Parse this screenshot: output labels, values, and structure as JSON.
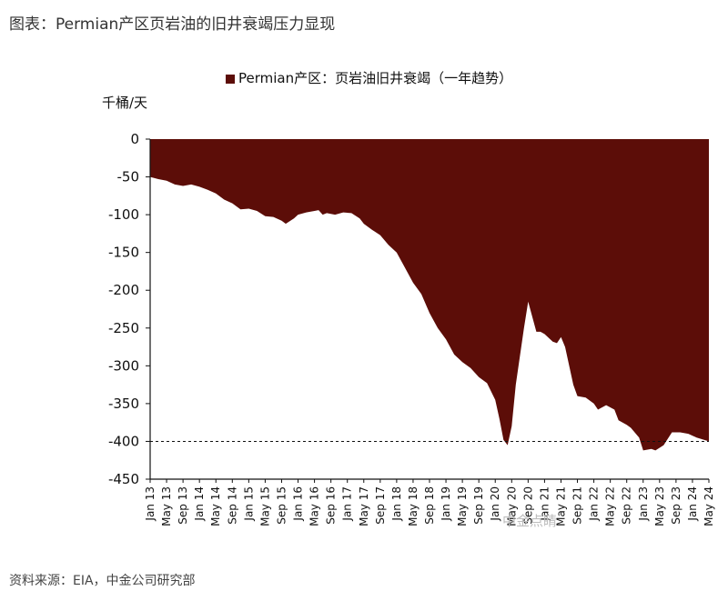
{
  "figure": {
    "title": "图表：Permian产区页岩油的旧井衰竭压力显现",
    "source": "资料来源：EIA，中金公司研究部",
    "watermark": "中金点睛"
  },
  "colors": {
    "area": "#5c0d08",
    "axis": "#111111",
    "reference_line": "#111111"
  },
  "chart_data": {
    "type": "area",
    "title": "",
    "xlabel": "",
    "ylabel": "千桶/天",
    "legend": {
      "position": "top",
      "entries": [
        "Permian产区：页岩油旧井衰竭（一年趋势）"
      ]
    },
    "ylim": [
      -450,
      0
    ],
    "yticks": [
      0,
      -50,
      -100,
      -150,
      -200,
      -250,
      -300,
      -350,
      -400,
      -450
    ],
    "xlim": [
      "2013-01",
      "2024-05"
    ],
    "xtick_labels": [
      "Jan 13",
      "May 13",
      "Sep 13",
      "Jan 14",
      "May 14",
      "Sep 14",
      "Jan 15",
      "May 15",
      "Sep 15",
      "Jan 16",
      "May 16",
      "Sep 16",
      "Jan 17",
      "May 17",
      "Sep 17",
      "Jan 18",
      "May 18",
      "Sep 18",
      "Jan 19",
      "May 19",
      "Sep 19",
      "Jan 20",
      "May 20",
      "Sep 20",
      "Jan 21",
      "May 21",
      "Sep 21",
      "Jan 22",
      "May 22",
      "Sep 22",
      "Jan 23",
      "May 23",
      "Sep 23",
      "Jan 24",
      "May 24"
    ],
    "grid": false,
    "reference_line": {
      "y": -400,
      "style": "dashed"
    },
    "series": [
      {
        "name": "Permian产区：页岩油旧井衰竭（一年趋势）",
        "points": [
          [
            "2013-01",
            -50
          ],
          [
            "2013-03",
            -53
          ],
          [
            "2013-05",
            -55
          ],
          [
            "2013-07",
            -60
          ],
          [
            "2013-09",
            -62
          ],
          [
            "2013-11",
            -60
          ],
          [
            "2014-01",
            -63
          ],
          [
            "2014-03",
            -67
          ],
          [
            "2014-05",
            -72
          ],
          [
            "2014-07",
            -80
          ],
          [
            "2014-09",
            -85
          ],
          [
            "2014-11",
            -93
          ],
          [
            "2015-01",
            -92
          ],
          [
            "2015-03",
            -95
          ],
          [
            "2015-05",
            -102
          ],
          [
            "2015-07",
            -103
          ],
          [
            "2015-09",
            -108
          ],
          [
            "2015-10",
            -112
          ],
          [
            "2015-12",
            -105
          ],
          [
            "2016-01",
            -100
          ],
          [
            "2016-03",
            -97
          ],
          [
            "2016-05",
            -95
          ],
          [
            "2016-06",
            -94
          ],
          [
            "2016-07",
            -100
          ],
          [
            "2016-08",
            -98
          ],
          [
            "2016-10",
            -100
          ],
          [
            "2016-12",
            -97
          ],
          [
            "2017-02",
            -98
          ],
          [
            "2017-04",
            -105
          ],
          [
            "2017-05",
            -112
          ],
          [
            "2017-07",
            -120
          ],
          [
            "2017-09",
            -127
          ],
          [
            "2017-11",
            -140
          ],
          [
            "2018-01",
            -150
          ],
          [
            "2018-03",
            -170
          ],
          [
            "2018-05",
            -190
          ],
          [
            "2018-07",
            -205
          ],
          [
            "2018-09",
            -230
          ],
          [
            "2018-11",
            -250
          ],
          [
            "2019-01",
            -265
          ],
          [
            "2019-03",
            -285
          ],
          [
            "2019-05",
            -295
          ],
          [
            "2019-07",
            -303
          ],
          [
            "2019-09",
            -315
          ],
          [
            "2019-11",
            -323
          ],
          [
            "2020-01",
            -345
          ],
          [
            "2020-02",
            -370
          ],
          [
            "2020-03",
            -398
          ],
          [
            "2020-04",
            -405
          ],
          [
            "2020-05",
            -380
          ],
          [
            "2020-06",
            -325
          ],
          [
            "2020-08",
            -250
          ],
          [
            "2020-09",
            -215
          ],
          [
            "2020-11",
            -255
          ],
          [
            "2020-12",
            -255
          ],
          [
            "2021-01",
            -258
          ],
          [
            "2021-03",
            -268
          ],
          [
            "2021-04",
            -270
          ],
          [
            "2021-05",
            -262
          ],
          [
            "2021-06",
            -275
          ],
          [
            "2021-08",
            -325
          ],
          [
            "2021-09",
            -340
          ],
          [
            "2021-11",
            -342
          ],
          [
            "2022-01",
            -350
          ],
          [
            "2022-02",
            -358
          ],
          [
            "2022-04",
            -352
          ],
          [
            "2022-06",
            -358
          ],
          [
            "2022-07",
            -372
          ],
          [
            "2022-09",
            -378
          ],
          [
            "2022-10",
            -382
          ],
          [
            "2022-12",
            -395
          ],
          [
            "2023-01",
            -412
          ],
          [
            "2023-03",
            -410
          ],
          [
            "2023-04",
            -412
          ],
          [
            "2023-06",
            -405
          ],
          [
            "2023-08",
            -388
          ],
          [
            "2023-10",
            -388
          ],
          [
            "2023-12",
            -390
          ],
          [
            "2024-02",
            -395
          ],
          [
            "2024-05",
            -400
          ]
        ]
      }
    ]
  }
}
